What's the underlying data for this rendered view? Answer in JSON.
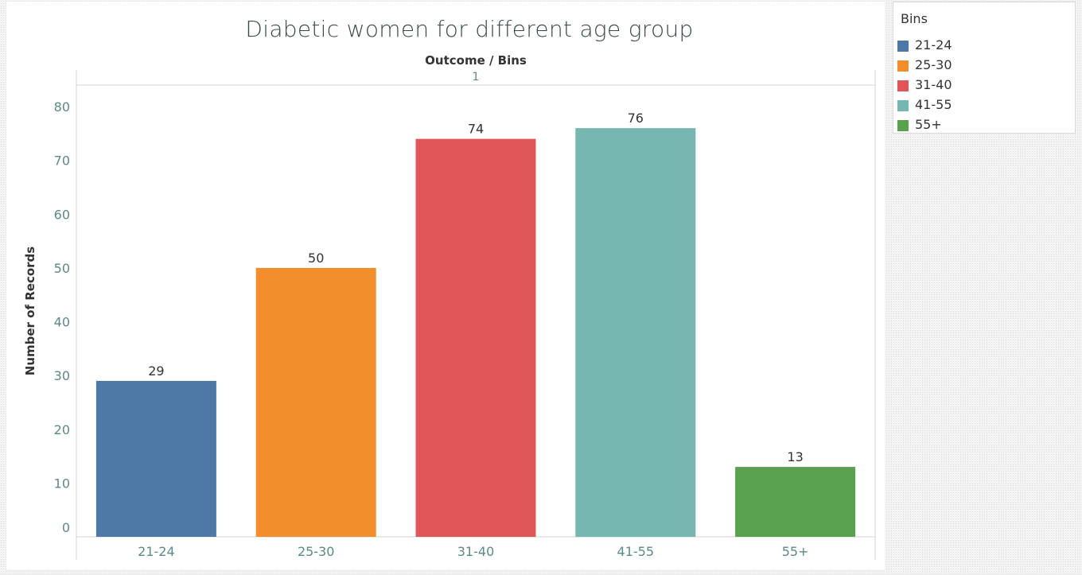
{
  "chart_data": {
    "type": "bar",
    "title": "Diabetic women for different age group",
    "column_header_label": "Outcome / Bins",
    "pane_header": "1",
    "ylabel": "Number of Records",
    "xlabel": "",
    "ylim": [
      0,
      84
    ],
    "yticks": [
      0,
      10,
      20,
      30,
      40,
      50,
      60,
      70,
      80
    ],
    "categories": [
      "21-24",
      "25-30",
      "31-40",
      "41-55",
      "55+"
    ],
    "values": [
      29,
      50,
      74,
      76,
      13
    ],
    "colors": [
      "#4e79a7",
      "#f28e2b",
      "#e15759",
      "#76b7b2",
      "#59a14f"
    ],
    "grid": false,
    "data_labels": true,
    "legend": {
      "title": "Bins",
      "placement": "right",
      "items": [
        "21-24",
        "25-30",
        "31-40",
        "41-55",
        "55+"
      ]
    }
  }
}
